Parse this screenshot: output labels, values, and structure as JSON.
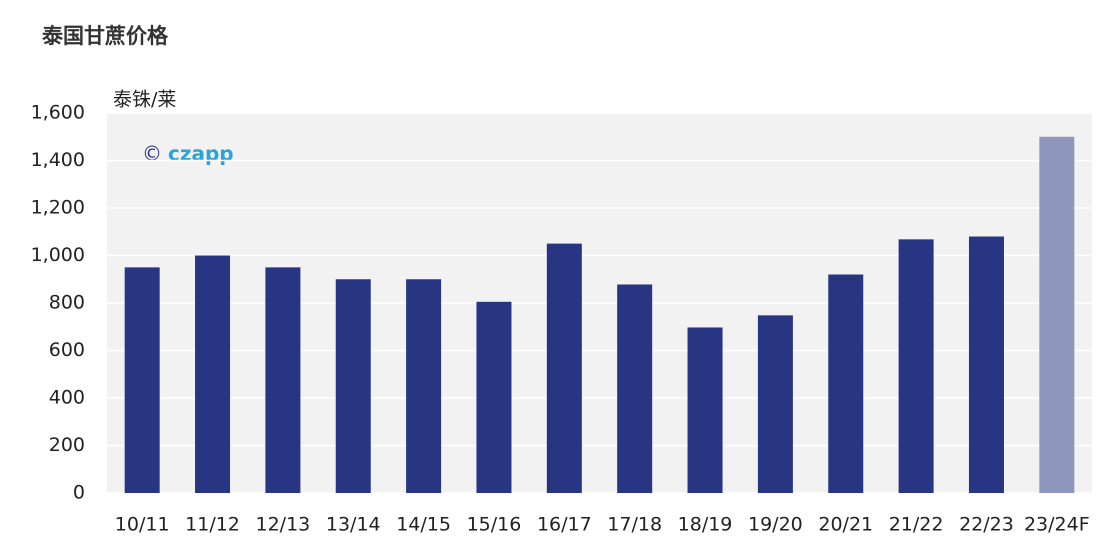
{
  "chart_data": {
    "type": "bar",
    "title": "泰国甘蔗价格",
    "y_label": "泰铢/莱",
    "watermark": {
      "symbol": "©",
      "brand": "czapp"
    },
    "categories": [
      "10/11",
      "11/12",
      "12/13",
      "13/14",
      "14/15",
      "15/16",
      "16/17",
      "17/18",
      "18/19",
      "19/20",
      "20/21",
      "21/22",
      "22/23",
      "23/24F"
    ],
    "values": [
      950,
      1000,
      950,
      900,
      900,
      805,
      1050,
      878,
      697,
      748,
      920,
      1068,
      1080,
      1500
    ],
    "colors": [
      "#283583",
      "#283583",
      "#283583",
      "#283583",
      "#283583",
      "#283583",
      "#283583",
      "#283583",
      "#283583",
      "#283583",
      "#283583",
      "#283583",
      "#283583",
      "#8e96bd"
    ],
    "ylim": [
      0,
      1600
    ],
    "yticks": [
      0,
      200,
      400,
      600,
      800,
      {
        "value": 1000,
        "label": "1,000"
      },
      {
        "value": 1200,
        "label": "1,200"
      },
      {
        "value": 1400,
        "label": "1,400"
      },
      {
        "value": 1600,
        "label": "1,600"
      }
    ],
    "grid": true
  }
}
